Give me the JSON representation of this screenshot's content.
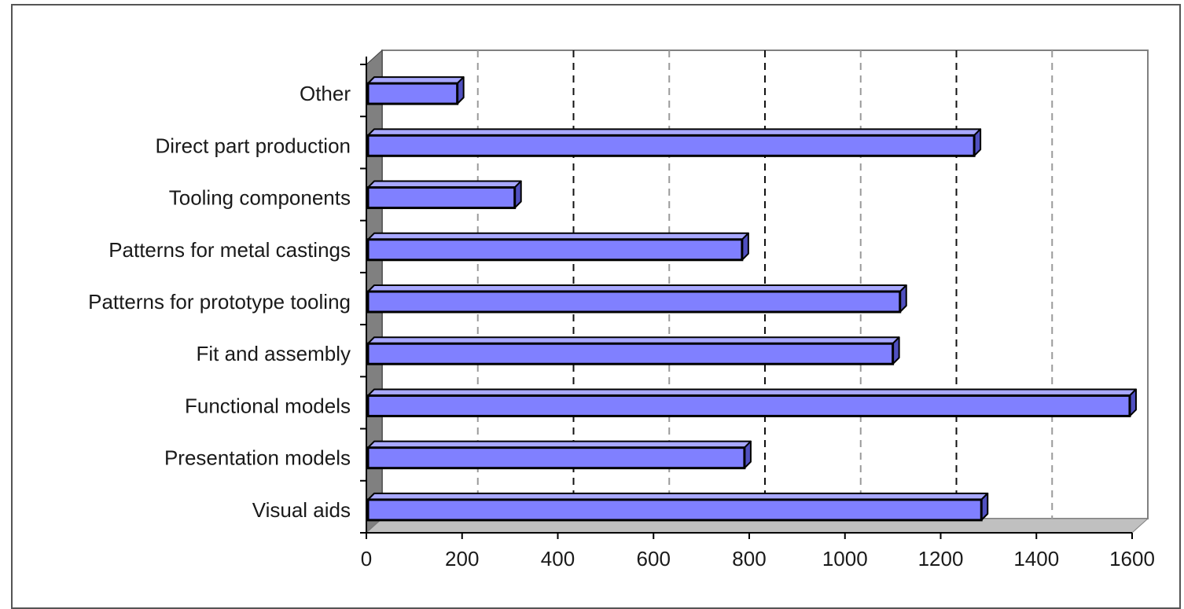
{
  "chart_data": {
    "type": "bar",
    "orientation": "horizontal",
    "style": "3d",
    "categories": [
      "Other",
      "Direct part production",
      "Tooling components",
      "Patterns for metal castings",
      "Patterns for prototype tooling",
      "Fit and assembly",
      "Functional models",
      "Presentation models",
      "Visual aids"
    ],
    "values": [
      190,
      1270,
      310,
      785,
      1115,
      1100,
      1595,
      790,
      1285
    ],
    "title": "",
    "xlabel": "",
    "ylabel": "",
    "xlim": [
      0,
      1600
    ],
    "xticks": [
      0,
      200,
      400,
      600,
      800,
      1000,
      1200,
      1400,
      1600
    ],
    "grid": "vertical-dashed",
    "legend": "none",
    "colors": {
      "bar_face": "#8080ff",
      "bar_top": "#a8a8ff",
      "bar_side": "#5050c0",
      "bar_outline": "#000000",
      "back_wall": "#ffffff",
      "side_wall": "#808080",
      "floor": "#c0c0c0"
    }
  }
}
